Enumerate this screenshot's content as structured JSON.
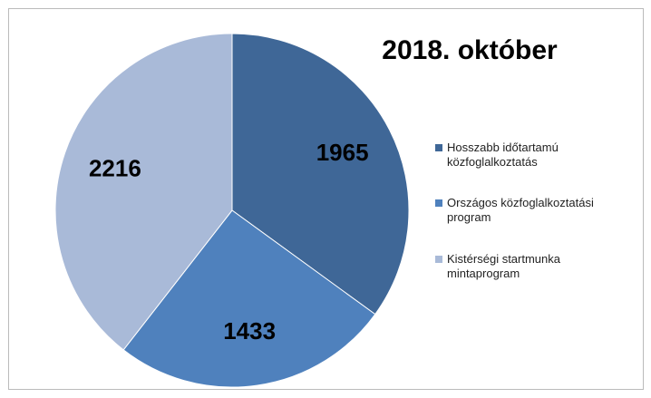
{
  "chart_data": {
    "type": "pie",
    "title": "2018. október",
    "categories": [
      "Hosszabb időtartamú közfoglalkoztatás",
      "Országos közfoglalkoztatási program",
      "Kistérségi startmunka mintaprogram"
    ],
    "values": [
      1965,
      1433,
      2216
    ],
    "colors": [
      "#3f6797",
      "#4f81bd",
      "#a9bad8"
    ],
    "legend": "right"
  }
}
